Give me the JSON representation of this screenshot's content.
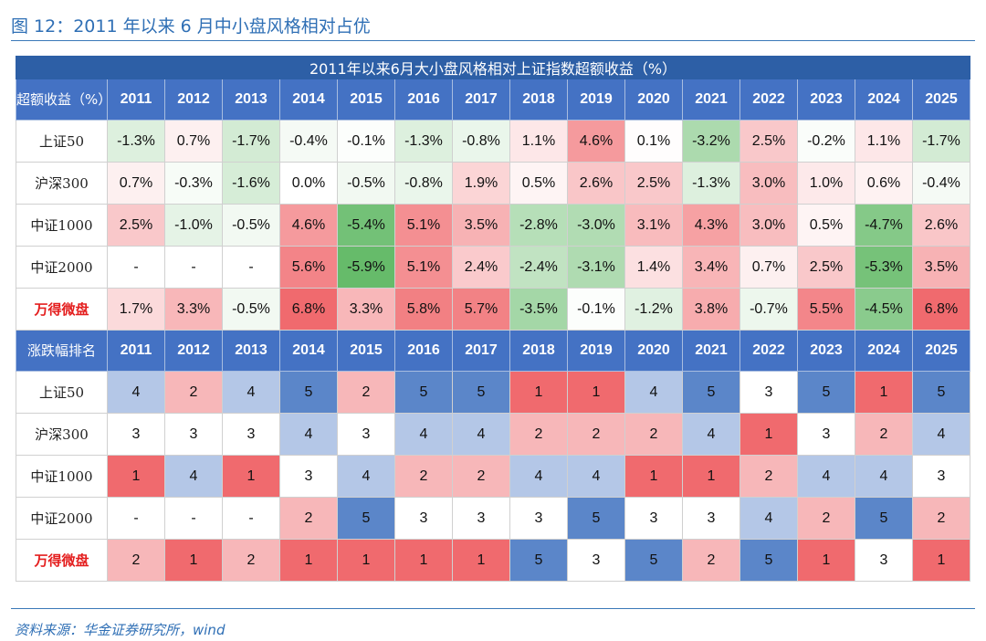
{
  "figure_title": "图 12：2011 年以来 6 月中小盘风格相对占优",
  "table_caption": "2011年以来6月大小盘风格相对上证指数超额收益（%）",
  "years": [
    "2011",
    "2012",
    "2013",
    "2014",
    "2015",
    "2016",
    "2017",
    "2018",
    "2019",
    "2020",
    "2021",
    "2022",
    "2023",
    "2024",
    "2025"
  ],
  "excess_header": "超额收益（%）",
  "rank_header": "涨跌幅排名",
  "excess_rows": [
    {
      "label": "上证50",
      "highlight": false,
      "values": [
        "-1.3%",
        "0.7%",
        "-1.7%",
        "-0.4%",
        "-0.1%",
        "-1.3%",
        "-0.8%",
        "1.1%",
        "4.6%",
        "0.1%",
        "-3.2%",
        "2.5%",
        "-0.2%",
        "1.1%",
        "-1.7%"
      ]
    },
    {
      "label": "沪深300",
      "highlight": false,
      "values": [
        "0.7%",
        "-0.3%",
        "-1.6%",
        "0.0%",
        "-0.5%",
        "-0.8%",
        "1.9%",
        "0.5%",
        "2.6%",
        "2.5%",
        "-1.3%",
        "3.0%",
        "1.0%",
        "0.6%",
        "-0.4%"
      ]
    },
    {
      "label": "中证1000",
      "highlight": false,
      "values": [
        "2.5%",
        "-1.0%",
        "-0.5%",
        "4.6%",
        "-5.4%",
        "5.1%",
        "3.5%",
        "-2.8%",
        "-3.0%",
        "3.1%",
        "4.3%",
        "3.0%",
        "0.5%",
        "-4.7%",
        "2.6%"
      ]
    },
    {
      "label": "中证2000",
      "highlight": false,
      "values": [
        "-",
        "-",
        "-",
        "5.6%",
        "-5.9%",
        "5.1%",
        "2.4%",
        "-2.4%",
        "-3.1%",
        "1.4%",
        "3.4%",
        "0.7%",
        "2.5%",
        "-5.3%",
        "3.5%"
      ]
    },
    {
      "label": "万得微盘",
      "highlight": true,
      "values": [
        "1.7%",
        "3.3%",
        "-0.5%",
        "6.8%",
        "3.3%",
        "5.8%",
        "5.7%",
        "-3.5%",
        "-0.1%",
        "-1.2%",
        "3.8%",
        "-0.7%",
        "5.5%",
        "-4.5%",
        "6.8%"
      ]
    }
  ],
  "rank_rows": [
    {
      "label": "上证50",
      "highlight": false,
      "values": [
        "4",
        "2",
        "4",
        "5",
        "2",
        "5",
        "5",
        "1",
        "1",
        "4",
        "5",
        "3",
        "5",
        "1",
        "5"
      ]
    },
    {
      "label": "沪深300",
      "highlight": false,
      "values": [
        "3",
        "3",
        "3",
        "4",
        "3",
        "4",
        "4",
        "2",
        "2",
        "2",
        "4",
        "1",
        "3",
        "2",
        "4"
      ]
    },
    {
      "label": "中证1000",
      "highlight": false,
      "values": [
        "1",
        "4",
        "1",
        "3",
        "4",
        "2",
        "2",
        "4",
        "4",
        "1",
        "1",
        "2",
        "4",
        "4",
        "3"
      ]
    },
    {
      "label": "中证2000",
      "highlight": false,
      "values": [
        "-",
        "-",
        "-",
        "2",
        "5",
        "3",
        "3",
        "3",
        "5",
        "3",
        "3",
        "4",
        "2",
        "5",
        "2"
      ]
    },
    {
      "label": "万得微盘",
      "highlight": true,
      "values": [
        "2",
        "1",
        "2",
        "1",
        "1",
        "1",
        "1",
        "5",
        "3",
        "5",
        "2",
        "5",
        "1",
        "3",
        "1"
      ]
    }
  ],
  "rank_colors": {
    "1": "#f06a6e",
    "2": "#f7b7b9",
    "3": "#ffffff",
    "4": "#b4c7e7",
    "5": "#5b86c9",
    "-": "#ffffff"
  },
  "source": "资料来源：华金证券研究所，wind"
}
